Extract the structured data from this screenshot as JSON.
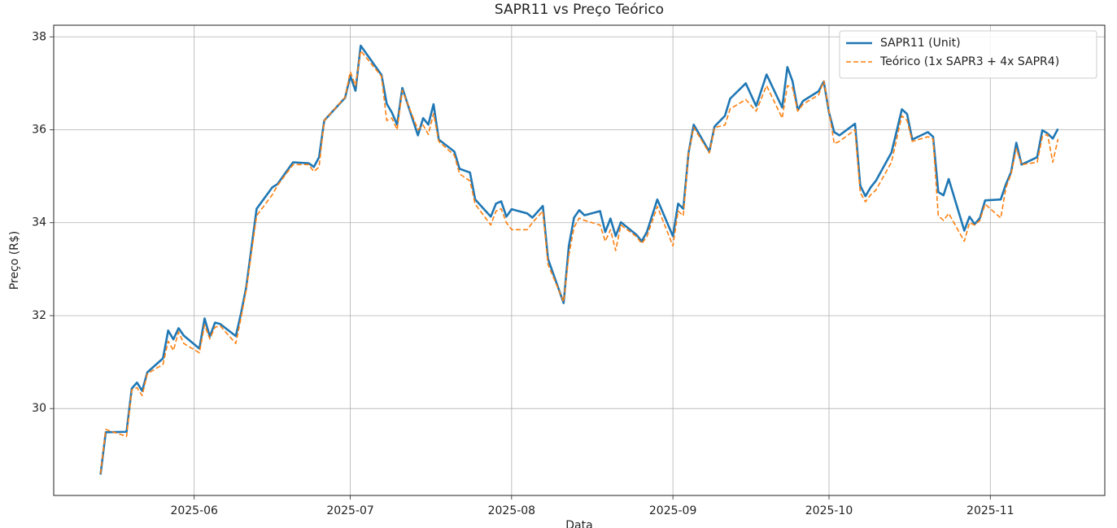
{
  "chart_data": {
    "type": "line",
    "title": "SAPR11 vs Preço Teórico",
    "xlabel": "Data",
    "ylabel": "Preço (R$)",
    "x": [
      134,
      135,
      139,
      140,
      141,
      142,
      143,
      146,
      147,
      148,
      149,
      150,
      153,
      154,
      155,
      156,
      157,
      160,
      161,
      162,
      164,
      167,
      168,
      171,
      174,
      175,
      176,
      177,
      181,
      182,
      183,
      184,
      188,
      189,
      190,
      191,
      192,
      195,
      196,
      197,
      198,
      199,
      202,
      203,
      205,
      206,
      209,
      210,
      211,
      212,
      213,
      216,
      217,
      219,
      220,
      223,
      224,
      225,
      226,
      227,
      230,
      231,
      232,
      233,
      234,
      237,
      238,
      239,
      241,
      244,
      245,
      246,
      247,
      248,
      251,
      252,
      254,
      255,
      258,
      260,
      262,
      265,
      266,
      267,
      268,
      269,
      272,
      273,
      274,
      275,
      276,
      279,
      280,
      281,
      282,
      283,
      286,
      287,
      288,
      289,
      290,
      293,
      294,
      295,
      296,
      297,
      300,
      301,
      302,
      303,
      304,
      307,
      308,
      309,
      310,
      311,
      314,
      315,
      316,
      317,
      318
    ],
    "series": [
      {
        "name": "SAPR11 (Unit)",
        "color": "#1f77b4",
        "dash": "solid",
        "values": [
          28.58,
          29.49,
          29.5,
          30.43,
          30.56,
          30.38,
          30.78,
          31.08,
          31.68,
          31.49,
          31.73,
          31.57,
          31.29,
          31.94,
          31.55,
          31.85,
          31.82,
          31.56,
          32.05,
          32.61,
          34.3,
          34.76,
          34.83,
          35.3,
          35.28,
          35.2,
          35.41,
          36.2,
          36.69,
          37.16,
          36.84,
          37.81,
          37.18,
          36.56,
          36.37,
          36.11,
          36.9,
          35.88,
          36.25,
          36.11,
          36.55,
          35.79,
          35.53,
          35.16,
          35.08,
          34.5,
          34.13,
          34.41,
          34.46,
          34.13,
          34.29,
          34.2,
          34.11,
          34.36,
          33.22,
          32.27,
          33.5,
          34.11,
          34.27,
          34.16,
          34.25,
          33.8,
          34.09,
          33.71,
          34.01,
          33.74,
          33.6,
          33.8,
          34.5,
          33.71,
          34.41,
          34.3,
          35.5,
          36.11,
          35.53,
          36.07,
          36.3,
          36.67,
          37.0,
          36.51,
          37.19,
          36.48,
          37.35,
          37.04,
          36.42,
          36.62,
          36.83,
          37.04,
          36.37,
          35.95,
          35.88,
          36.13,
          34.8,
          34.57,
          34.76,
          34.9,
          35.51,
          35.97,
          36.44,
          36.34,
          35.79,
          35.95,
          35.85,
          34.66,
          34.59,
          34.94,
          33.83,
          34.13,
          33.97,
          34.1,
          34.48,
          34.5,
          34.83,
          35.09,
          35.72,
          35.25,
          35.41,
          35.99,
          35.92,
          35.81,
          36.02
        ]
      },
      {
        "name": "Teórico (1x SAPR3 + 4x SAPR4)",
        "color": "#ff7f0e",
        "dash": "dashed",
        "values": [
          28.6,
          29.55,
          29.4,
          30.4,
          30.45,
          30.28,
          30.75,
          30.95,
          31.45,
          31.25,
          31.65,
          31.4,
          31.2,
          31.8,
          31.5,
          31.75,
          31.78,
          31.4,
          31.95,
          32.55,
          34.15,
          34.6,
          34.8,
          35.25,
          35.25,
          35.1,
          35.2,
          36.2,
          36.7,
          37.25,
          36.95,
          37.7,
          37.15,
          36.2,
          36.25,
          36.0,
          36.85,
          36.0,
          36.1,
          35.9,
          36.35,
          35.75,
          35.45,
          35.05,
          34.9,
          34.4,
          33.95,
          34.25,
          34.3,
          34.0,
          33.85,
          33.85,
          34.0,
          34.25,
          33.1,
          32.3,
          33.3,
          33.9,
          34.1,
          34.05,
          33.95,
          33.6,
          33.85,
          33.4,
          33.95,
          33.7,
          33.55,
          33.7,
          34.35,
          33.5,
          34.25,
          34.15,
          35.5,
          36.05,
          35.5,
          36.05,
          36.1,
          36.45,
          36.65,
          36.4,
          36.95,
          36.25,
          36.95,
          36.9,
          36.4,
          36.55,
          36.75,
          37.05,
          36.4,
          35.7,
          35.75,
          36.0,
          34.65,
          34.45,
          34.6,
          34.7,
          35.3,
          35.8,
          36.3,
          36.2,
          35.75,
          35.85,
          35.8,
          34.15,
          34.05,
          34.2,
          33.6,
          34.0,
          33.95,
          34.05,
          34.4,
          34.1,
          34.75,
          35.05,
          35.6,
          35.25,
          35.3,
          35.85,
          35.9,
          35.3,
          35.8
        ]
      }
    ],
    "xlim": [
      125,
      327
    ],
    "xticks": [
      {
        "value": 152,
        "label": "2025-06"
      },
      {
        "value": 182,
        "label": "2025-07"
      },
      {
        "value": 213,
        "label": "2025-08"
      },
      {
        "value": 244,
        "label": "2025-09"
      },
      {
        "value": 274,
        "label": "2025-10"
      },
      {
        "value": 305,
        "label": "2025-11"
      }
    ],
    "ylim": [
      28.13,
      38.25
    ],
    "yticks": [
      30,
      32,
      34,
      36,
      38
    ],
    "grid": true,
    "legend": "upper right"
  }
}
